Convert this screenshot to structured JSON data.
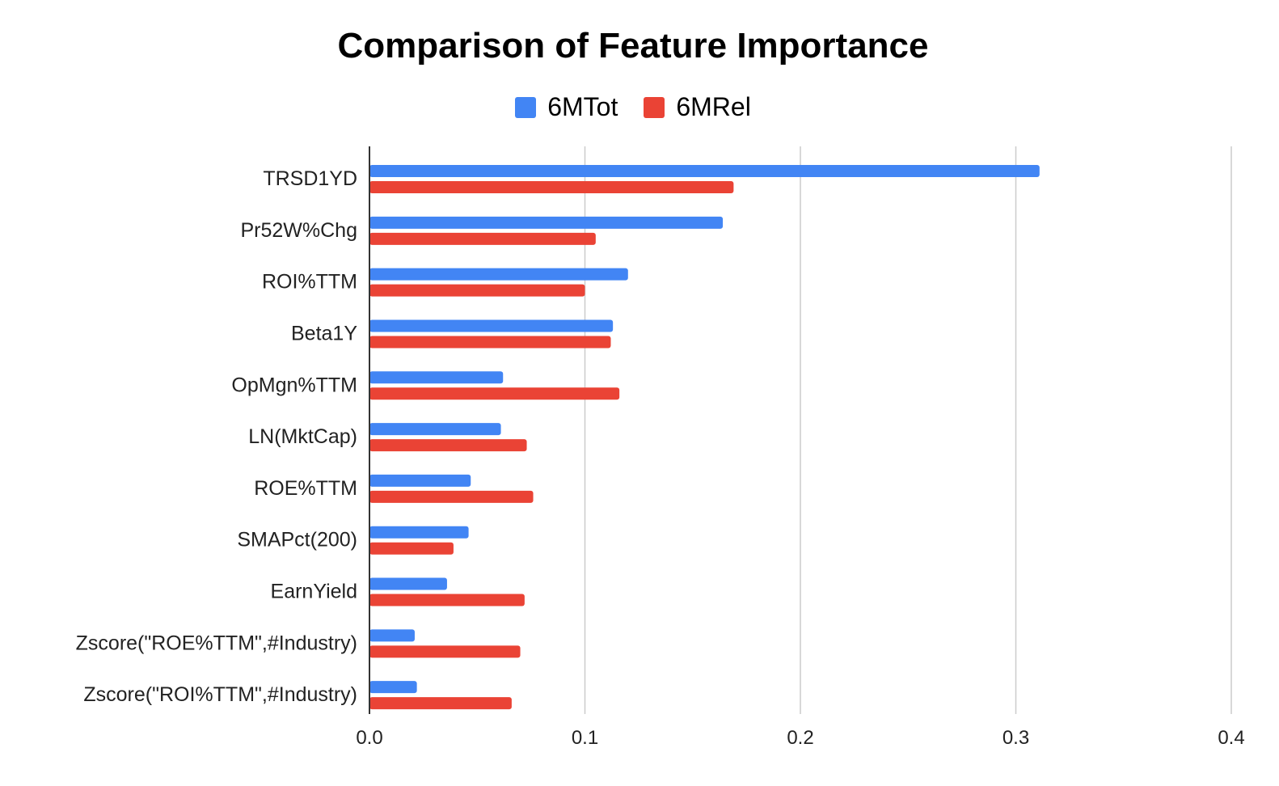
{
  "chart_data": {
    "type": "bar",
    "orientation": "horizontal",
    "title": "Comparison of Feature Importance",
    "xlabel": "",
    "ylabel": "",
    "categories": [
      "TRSD1YD",
      "Pr52W%Chg",
      "ROI%TTM",
      "Beta1Y",
      "OpMgn%TTM",
      "LN(MktCap)",
      "ROE%TTM",
      "SMAPct(200)",
      "EarnYield",
      "Zscore(\"ROE%TTM\",#Industry)",
      "Zscore(\"ROI%TTM\",#Industry)"
    ],
    "series": [
      {
        "name": "6MTot",
        "color": "#4285f4",
        "values": [
          0.311,
          0.164,
          0.12,
          0.113,
          0.062,
          0.061,
          0.047,
          0.046,
          0.036,
          0.021,
          0.022
        ]
      },
      {
        "name": "6MRel",
        "color": "#ea4335",
        "values": [
          0.169,
          0.105,
          0.1,
          0.112,
          0.116,
          0.073,
          0.076,
          0.039,
          0.072,
          0.07,
          0.066
        ]
      }
    ],
    "xlim": [
      0,
      0.4
    ],
    "x_ticks": [
      "0.0",
      "0.1",
      "0.2",
      "0.3",
      "0.4"
    ],
    "grid": "vertical",
    "legend": "top-center"
  }
}
